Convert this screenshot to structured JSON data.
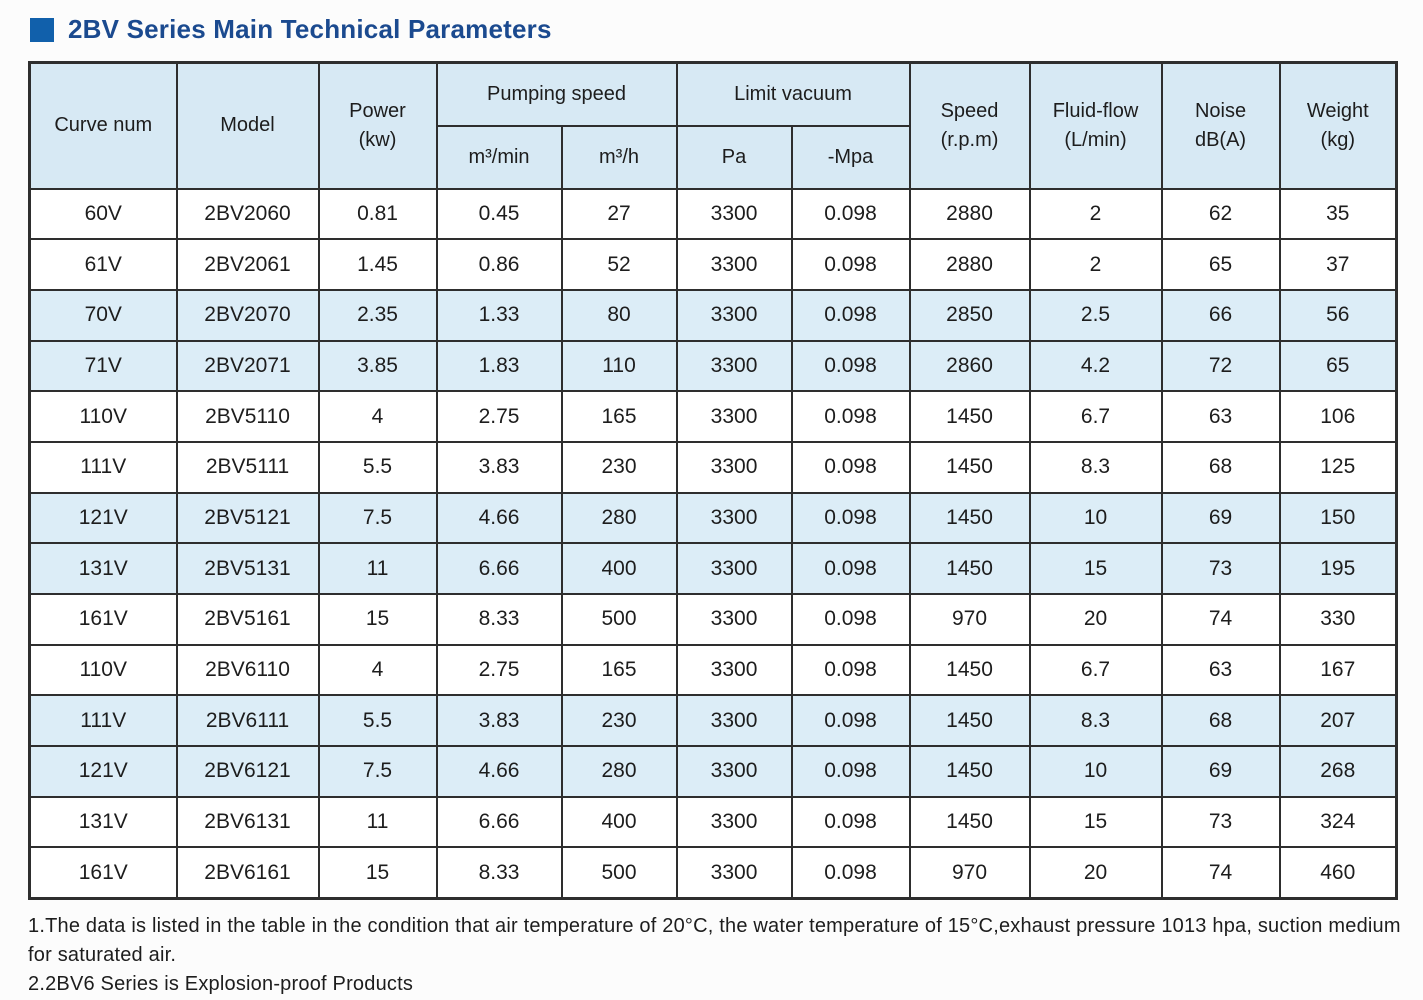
{
  "page": {
    "title": "2BV Series Main Technical Parameters"
  },
  "colors": {
    "title_text": "#1b4a8f",
    "title_bullet": "#1160ab",
    "header_bg": "#d7e9f4",
    "stripe_row_bg": "#dcedf7",
    "border": "#2e2e2e"
  },
  "table": {
    "header": {
      "curve_num": "Curve num",
      "model": "Model",
      "power_line1": "Power",
      "power_line2": "(kw)",
      "pumping_group": "Pumping speed",
      "pumping_sub_min": "m³/min",
      "pumping_sub_h": "m³/h",
      "vacuum_group": "Limit vacuum",
      "vacuum_sub_pa": "Pa",
      "vacuum_sub_mpa": "-Mpa",
      "speed_line1": "Speed",
      "speed_line2": "(r.p.m)",
      "fluid_line1": "Fluid-flow",
      "fluid_line2": "(L/min)",
      "noise_line1": "Noise",
      "noise_line2": "dB(A)",
      "weight_line1": "Weight",
      "weight_line2": "(kg)"
    },
    "column_keys": [
      "curve-num",
      "model",
      "power-kw",
      "pumping-m3min",
      "pumping-m3h",
      "vacuum-pa",
      "vacuum-mpa",
      "speed-rpm",
      "fluid-flow",
      "noise-db",
      "weight-kg"
    ],
    "rows": [
      [
        "60V",
        "2BV2060",
        "0.81",
        "0.45",
        "27",
        "3300",
        "0.098",
        "2880",
        "2",
        "62",
        "35"
      ],
      [
        "61V",
        "2BV2061",
        "1.45",
        "0.86",
        "52",
        "3300",
        "0.098",
        "2880",
        "2",
        "65",
        "37"
      ],
      [
        "70V",
        "2BV2070",
        "2.35",
        "1.33",
        "80",
        "3300",
        "0.098",
        "2850",
        "2.5",
        "66",
        "56"
      ],
      [
        "71V",
        "2BV2071",
        "3.85",
        "1.83",
        "110",
        "3300",
        "0.098",
        "2860",
        "4.2",
        "72",
        "65"
      ],
      [
        "110V",
        "2BV5110",
        "4",
        "2.75",
        "165",
        "3300",
        "0.098",
        "1450",
        "6.7",
        "63",
        "106"
      ],
      [
        "111V",
        "2BV5111",
        "5.5",
        "3.83",
        "230",
        "3300",
        "0.098",
        "1450",
        "8.3",
        "68",
        "125"
      ],
      [
        "121V",
        "2BV5121",
        "7.5",
        "4.66",
        "280",
        "3300",
        "0.098",
        "1450",
        "10",
        "69",
        "150"
      ],
      [
        "131V",
        "2BV5131",
        "11",
        "6.66",
        "400",
        "3300",
        "0.098",
        "1450",
        "15",
        "73",
        "195"
      ],
      [
        "161V",
        "2BV5161",
        "15",
        "8.33",
        "500",
        "3300",
        "0.098",
        "970",
        "20",
        "74",
        "330"
      ],
      [
        "110V",
        "2BV6110",
        "4",
        "2.75",
        "165",
        "3300",
        "0.098",
        "1450",
        "6.7",
        "63",
        "167"
      ],
      [
        "111V",
        "2BV6111",
        "5.5",
        "3.83",
        "230",
        "3300",
        "0.098",
        "1450",
        "8.3",
        "68",
        "207"
      ],
      [
        "121V",
        "2BV6121",
        "7.5",
        "4.66",
        "280",
        "3300",
        "0.098",
        "1450",
        "10",
        "69",
        "268"
      ],
      [
        "131V",
        "2BV6131",
        "11",
        "6.66",
        "400",
        "3300",
        "0.098",
        "1450",
        "15",
        "73",
        "324"
      ],
      [
        "161V",
        "2BV6161",
        "15",
        "8.33",
        "500",
        "3300",
        "0.098",
        "970",
        "20",
        "74",
        "460"
      ]
    ]
  },
  "notes": {
    "note1": "1.The data is listed in the table in the condition that air temperature of 20°C, the water temperature of 15°C,exhaust pressure 1013 hpa, suction medium for saturated air.",
    "note2": "2.2BV6 Series is Explosion-proof Products"
  }
}
